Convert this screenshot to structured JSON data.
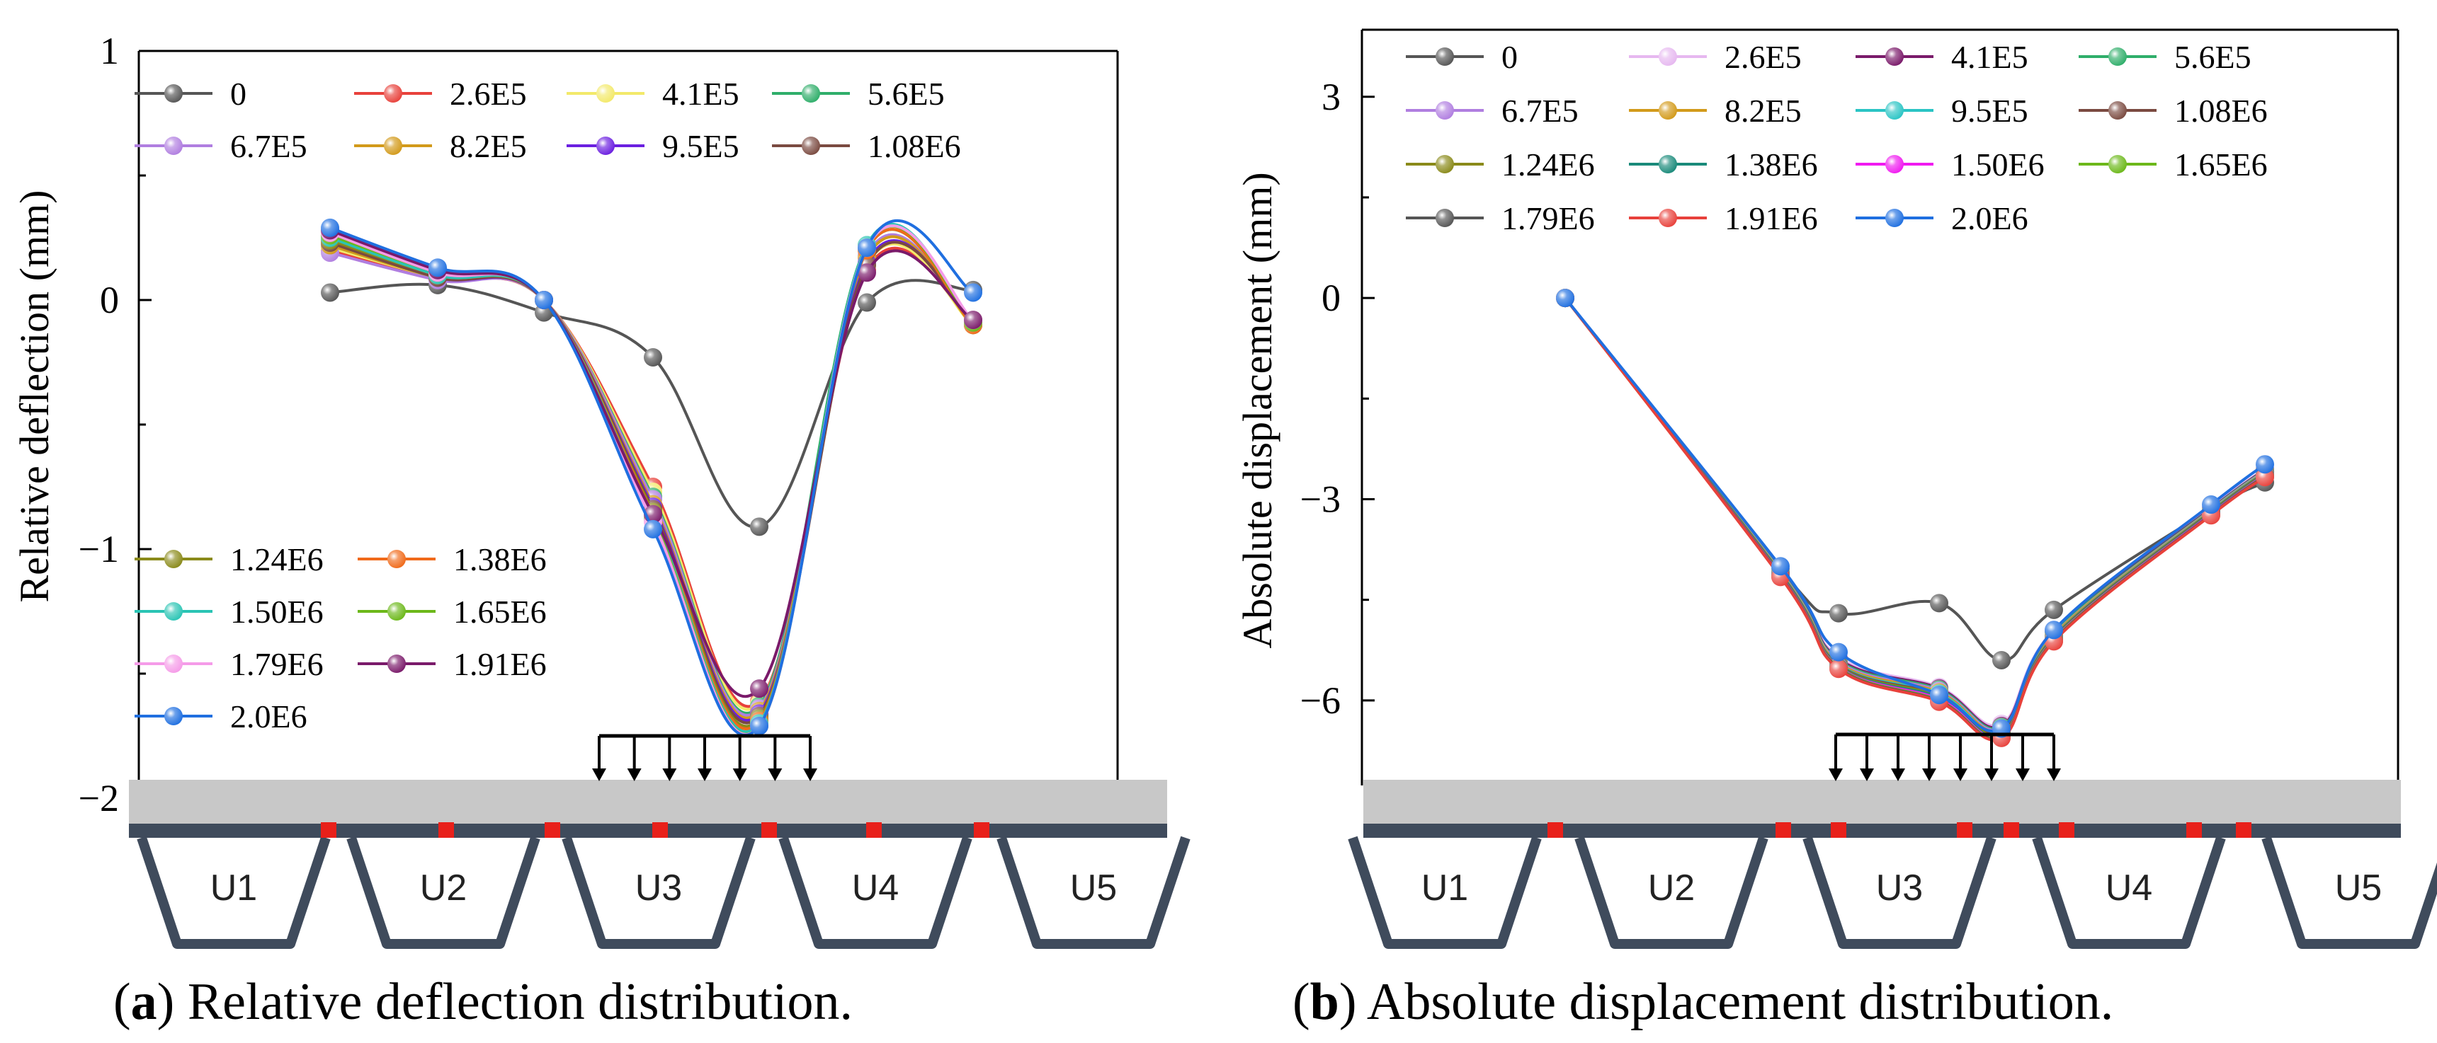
{
  "figure": {
    "caption_a_letter": "a",
    "caption_a_text": " Relative deflection distribution.",
    "caption_b_letter": "b",
    "caption_b_text": " Absolute displacement distribution."
  },
  "units": [
    "U1",
    "U2",
    "U3",
    "U4",
    "U5"
  ],
  "chart_data": [
    {
      "panel": "a",
      "type": "line",
      "title": "",
      "xlabel": "",
      "ylabel": "Relative deflection (mm)",
      "ylim": [
        -2,
        1
      ],
      "yticks": [
        1,
        0,
        -1,
        -2
      ],
      "ytick_labels": [
        "1",
        "0",
        "−1",
        "−2"
      ],
      "xlim": [
        0,
        10
      ],
      "x": [
        1,
        2,
        3,
        4,
        5,
        6,
        7
      ],
      "legend_upper": [
        "0",
        "2.6E5",
        "4.1E5",
        "5.6E5",
        "6.7E5",
        "8.2E5",
        "9.5E5",
        "1.08E6"
      ],
      "legend_lower": [
        "1.24E6",
        "1.38E6",
        "1.50E6",
        "1.65E6",
        "1.79E6",
        "1.91E6",
        "2.0E6"
      ],
      "series": [
        {
          "name": "0",
          "color": "#555555",
          "values": [
            0.03,
            0.06,
            -0.05,
            -0.23,
            -0.91,
            -0.01,
            0.04
          ]
        },
        {
          "name": "2.6E5",
          "color": "#e8413b",
          "values": [
            0.2,
            0.09,
            0.0,
            -0.75,
            -1.61,
            0.12,
            -0.09
          ]
        },
        {
          "name": "4.1E5",
          "color": "#f3e96a",
          "values": [
            0.21,
            0.09,
            0.0,
            -0.77,
            -1.62,
            0.14,
            -0.1
          ]
        },
        {
          "name": "5.6E5",
          "color": "#2fae6a",
          "values": [
            0.22,
            0.09,
            0.0,
            -0.79,
            -1.63,
            0.22,
            -0.1
          ]
        },
        {
          "name": "6.7E5",
          "color": "#b07ee0",
          "values": [
            0.19,
            0.08,
            0.0,
            -0.8,
            -1.64,
            0.18,
            -0.1
          ]
        },
        {
          "name": "8.2E5",
          "color": "#d29a1a",
          "values": [
            0.22,
            0.09,
            0.0,
            -0.82,
            -1.65,
            0.17,
            -0.1
          ]
        },
        {
          "name": "9.5E5",
          "color": "#6b1fe0",
          "values": [
            0.24,
            0.09,
            0.0,
            -0.83,
            -1.66,
            0.15,
            -0.09
          ]
        },
        {
          "name": "1.08E6",
          "color": "#7a4a40",
          "values": [
            0.23,
            0.09,
            0.0,
            -0.84,
            -1.67,
            0.14,
            -0.08
          ]
        },
        {
          "name": "1.24E6",
          "color": "#8a8a1a",
          "values": [
            0.24,
            0.1,
            0.0,
            -0.85,
            -1.68,
            0.2,
            -0.1
          ]
        },
        {
          "name": "1.38E6",
          "color": "#f06a1a",
          "values": [
            0.25,
            0.1,
            0.0,
            -0.86,
            -1.69,
            0.2,
            -0.1
          ]
        },
        {
          "name": "1.50E6",
          "color": "#2ac4b4",
          "values": [
            0.25,
            0.1,
            0.0,
            -0.87,
            -1.7,
            0.22,
            -0.09
          ]
        },
        {
          "name": "1.65E6",
          "color": "#6cb81a",
          "values": [
            0.26,
            0.11,
            0.0,
            -0.88,
            -1.71,
            0.21,
            -0.09
          ]
        },
        {
          "name": "1.79E6",
          "color": "#f59be8",
          "values": [
            0.27,
            0.11,
            0.0,
            -0.89,
            -1.71,
            0.21,
            -0.08
          ]
        },
        {
          "name": "1.91E6",
          "color": "#7a1a6a",
          "values": [
            0.28,
            0.12,
            0.0,
            -0.86,
            -1.56,
            0.11,
            -0.08
          ]
        },
        {
          "name": "2.0E6",
          "color": "#1f6fe0",
          "values": [
            0.29,
            0.13,
            0.0,
            -0.92,
            -1.71,
            0.21,
            0.03
          ]
        }
      ]
    },
    {
      "panel": "b",
      "type": "line",
      "title": "",
      "xlabel": "",
      "ylabel": "Absolute displacement (mm)",
      "ylim": [
        -7.5,
        4
      ],
      "yticks": [
        3,
        0,
        -3,
        -6
      ],
      "ytick_labels": [
        "3",
        "0",
        "−3",
        "−6"
      ],
      "xlim": [
        0,
        10
      ],
      "x": [
        1,
        2,
        3,
        4,
        5,
        6,
        7,
        8
      ],
      "legend": [
        "0",
        "2.6E5",
        "4.1E5",
        "5.6E5",
        "6.7E5",
        "8.2E5",
        "9.5E5",
        "1.08E6",
        "1.24E6",
        "1.38E6",
        "1.50E6",
        "1.65E6",
        "1.79E6",
        "1.91E6",
        "2.0E6"
      ],
      "series": [
        {
          "name": "0",
          "color": "#555555",
          "values": [
            0.0,
            -4.05,
            -4.7,
            -4.55,
            -5.4,
            -4.65,
            -3.15,
            -2.75
          ]
        },
        {
          "name": "2.6E5",
          "color": "#e6b8f0",
          "values": [
            0.0,
            -4.05,
            -5.35,
            -5.8,
            -6.35,
            -4.95,
            -3.12,
            -2.55
          ]
        },
        {
          "name": "4.1E5",
          "color": "#7a1a6a",
          "values": [
            0.0,
            -4.06,
            -5.38,
            -5.82,
            -6.38,
            -4.98,
            -3.14,
            -2.56
          ]
        },
        {
          "name": "5.6E5",
          "color": "#2fae6a",
          "values": [
            0.0,
            -4.07,
            -5.4,
            -5.84,
            -6.4,
            -5.0,
            -3.15,
            -2.57
          ]
        },
        {
          "name": "6.7E5",
          "color": "#b07ee0",
          "values": [
            0.0,
            -4.08,
            -5.42,
            -5.86,
            -6.42,
            -5.02,
            -3.16,
            -2.58
          ]
        },
        {
          "name": "8.2E5",
          "color": "#d29a1a",
          "values": [
            0.0,
            -4.09,
            -5.44,
            -5.88,
            -6.44,
            -5.03,
            -3.17,
            -2.59
          ]
        },
        {
          "name": "9.5E5",
          "color": "#2ac4c4",
          "values": [
            0.0,
            -4.1,
            -5.46,
            -5.9,
            -6.46,
            -5.05,
            -3.18,
            -2.6
          ]
        },
        {
          "name": "1.08E6",
          "color": "#7a4a40",
          "values": [
            0.0,
            -4.11,
            -5.47,
            -5.92,
            -6.48,
            -5.06,
            -3.19,
            -2.61
          ]
        },
        {
          "name": "1.24E6",
          "color": "#8a8a1a",
          "values": [
            0.0,
            -4.12,
            -5.48,
            -5.94,
            -6.5,
            -5.07,
            -3.2,
            -2.62
          ]
        },
        {
          "name": "1.38E6",
          "color": "#1a8a7a",
          "values": [
            0.0,
            -4.13,
            -5.49,
            -5.96,
            -6.52,
            -5.08,
            -3.21,
            -2.63
          ]
        },
        {
          "name": "1.50E6",
          "color": "#f01af0",
          "values": [
            0.0,
            -4.14,
            -5.5,
            -5.98,
            -6.53,
            -5.09,
            -3.22,
            -2.64
          ]
        },
        {
          "name": "1.65E6",
          "color": "#6cb81a",
          "values": [
            0.0,
            -4.15,
            -5.51,
            -6.0,
            -6.54,
            -5.1,
            -3.23,
            -2.65
          ]
        },
        {
          "name": "1.79E6",
          "color": "#555555",
          "values": [
            0.0,
            -4.15,
            -5.52,
            -6.01,
            -6.55,
            -5.11,
            -3.23,
            -2.66
          ]
        },
        {
          "name": "1.91E6",
          "color": "#e8413b",
          "values": [
            0.0,
            -4.16,
            -5.53,
            -6.02,
            -6.56,
            -5.12,
            -3.24,
            -2.67
          ]
        },
        {
          "name": "2.0E6",
          "color": "#1f6fe0",
          "values": [
            0.0,
            -4.0,
            -5.28,
            -5.92,
            -6.42,
            -4.95,
            -3.08,
            -2.48
          ]
        }
      ]
    }
  ]
}
